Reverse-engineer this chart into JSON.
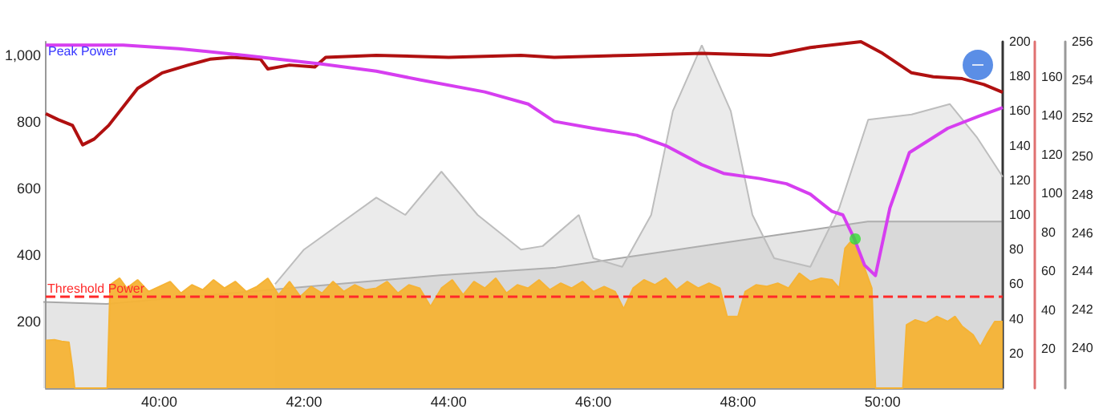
{
  "chart_data": [
    {
      "type": "area",
      "annotations": [
        "Peak Power"
      ],
      "xlim": [
        38.43,
        51.66
      ],
      "xticks": [
        {
          "value": 40,
          "label": "40:00"
        },
        {
          "value": 42,
          "label": "42:00"
        },
        {
          "value": 44,
          "label": "44:00"
        },
        {
          "value": 46,
          "label": "46:00"
        },
        {
          "value": 48,
          "label": "48:00"
        },
        {
          "value": 50,
          "label": "50:00"
        }
      ],
      "ylim": [
        0,
        1040
      ],
      "yticks": [
        200,
        400,
        600,
        800,
        {
          "value": 1000,
          "label": "1,000"
        }
      ],
      "y2lim": [
        0,
        200
      ],
      "y2ticks": [
        20,
        40,
        60,
        80,
        100,
        120,
        140,
        160,
        180,
        200
      ],
      "y3lim": [
        0,
        178
      ],
      "y3ticks": [
        20,
        40,
        60,
        80,
        100,
        120,
        140,
        160
      ],
      "grid": false,
      "ref_lines": [
        {
          "axis": "y",
          "value": 275,
          "label": "Threshold Power",
          "color": "#ff2a2a",
          "line_style": "dashed"
        }
      ],
      "series": [
        {
          "type": "area",
          "axis": "y2",
          "color": "#bdbdbd",
          "x": [
            41.6,
            42.0,
            42.5,
            43.0,
            43.4,
            43.9,
            44.4,
            45.0,
            45.3,
            45.8,
            46.0,
            46.4,
            46.8,
            47.1,
            47.5,
            47.9,
            48.2,
            48.5,
            49.0,
            49.4,
            49.8,
            50.4,
            50.93,
            51.3,
            51.66
          ],
          "values": [
            60,
            80,
            95,
            110,
            100,
            125,
            100,
            80,
            82,
            100,
            75,
            70,
            100,
            160,
            198,
            160,
            100,
            75,
            70,
            104,
            155,
            158,
            164,
            145,
            122
          ]
        },
        {
          "color": "#f5b335",
          "x": [
            38.43,
            38.55,
            38.65,
            38.75,
            38.8,
            38.83,
            39.28,
            39.32,
            39.45,
            39.55,
            39.7,
            39.85,
            40.0,
            40.15,
            40.3,
            40.45,
            40.6,
            40.75,
            40.9,
            41.05,
            41.2,
            41.35,
            41.5,
            41.65,
            41.8,
            41.95,
            42.1,
            42.25,
            42.4,
            42.55,
            42.7,
            42.85,
            43.0,
            43.15,
            43.3,
            43.45,
            43.6,
            43.75,
            43.9,
            44.05,
            44.2,
            44.35,
            44.5,
            44.65,
            44.8,
            44.95,
            45.1,
            45.25,
            45.4,
            45.55,
            45.7,
            45.85,
            46.0,
            46.15,
            46.3,
            46.42,
            46.55,
            46.7,
            46.85,
            47.0,
            47.15,
            47.3,
            47.45,
            47.6,
            47.75,
            47.85,
            48.0,
            48.1,
            48.25,
            48.4,
            48.55,
            48.7,
            48.85,
            49.0,
            49.15,
            49.3,
            49.4,
            49.48,
            49.55,
            49.65,
            49.75,
            49.85,
            49.9,
            50.28,
            50.33,
            50.45,
            50.6,
            50.75,
            50.9,
            51.0,
            51.1,
            51.25,
            51.35,
            51.45,
            51.55,
            51.66
          ],
          "values": [
            143,
            145,
            140,
            138,
            60,
            0,
            0,
            310,
            330,
            300,
            325,
            290,
            305,
            320,
            285,
            310,
            295,
            325,
            300,
            320,
            290,
            305,
            330,
            280,
            320,
            275,
            305,
            285,
            320,
            290,
            310,
            295,
            300,
            320,
            285,
            310,
            300,
            245,
            300,
            325,
            280,
            320,
            300,
            330,
            285,
            310,
            300,
            325,
            295,
            315,
            300,
            320,
            290,
            305,
            290,
            238,
            300,
            325,
            310,
            330,
            295,
            320,
            300,
            315,
            300,
            215,
            215,
            290,
            310,
            305,
            315,
            300,
            345,
            320,
            330,
            325,
            300,
            420,
            438,
            430,
            360,
            300,
            0,
            0,
            190,
            205,
            195,
            215,
            200,
            215,
            185,
            160,
            124,
            165,
            200,
            200
          ]
        },
        {
          "type": "line",
          "axis": "y3",
          "color": "#b01010",
          "x": [
            38.43,
            38.6,
            38.8,
            38.94,
            39.1,
            39.3,
            39.7,
            40.04,
            40.4,
            40.7,
            41.0,
            41.4,
            41.5,
            41.8,
            42.15,
            42.3,
            43.0,
            44.0,
            45.0,
            45.46,
            46.5,
            47.5,
            48.45,
            49.0,
            49.7,
            50.0,
            50.4,
            50.7,
            51.1,
            51.4,
            51.66
          ],
          "values": [
            141,
            138,
            135,
            125,
            128,
            135,
            154,
            162,
            166,
            169,
            170,
            169,
            164,
            166,
            165,
            170,
            171,
            170,
            171,
            170,
            171,
            172,
            171,
            175,
            178,
            172,
            162,
            160,
            159,
            156,
            152
          ]
        },
        {
          "type": "line",
          "axis": "y2",
          "color": "#d63ef0",
          "x": [
            38.43,
            39.5,
            40.27,
            41.2,
            42.26,
            43.0,
            43.6,
            44.5,
            45.1,
            45.46,
            46.0,
            46.6,
            47.0,
            47.5,
            47.8,
            48.3,
            48.67,
            49.0,
            49.3,
            49.45,
            49.6,
            49.75,
            49.9,
            50.1,
            50.37,
            50.9,
            51.33,
            51.66
          ],
          "values": [
            198,
            198,
            196,
            192,
            187,
            183,
            178,
            171,
            164,
            154,
            150,
            146,
            140,
            129,
            124,
            121,
            118,
            112,
            102,
            100,
            87,
            71,
            65,
            104,
            136,
            150,
            157,
            162
          ]
        },
        {
          "type": "scatter",
          "color": "#33dd33",
          "x": [
            49.62
          ],
          "values": [
            448
          ]
        }
      ]
    },
    {
      "type": "area",
      "xlim": [
        38.43,
        51.66
      ],
      "ylim": [
        237.9,
        256
      ],
      "yticks": [
        240,
        242,
        244,
        246,
        248,
        250,
        252,
        254,
        256
      ],
      "tick_labels": "y",
      "series": [
        {
          "color": "#a8a8a8",
          "x": [
            38.43,
            39.3,
            43.9,
            45.5,
            48.0,
            49.8,
            51.66
          ],
          "values": [
            242.4,
            242.3,
            243.8,
            244.2,
            245.6,
            246.6,
            246.6
          ]
        }
      ]
    }
  ]
}
